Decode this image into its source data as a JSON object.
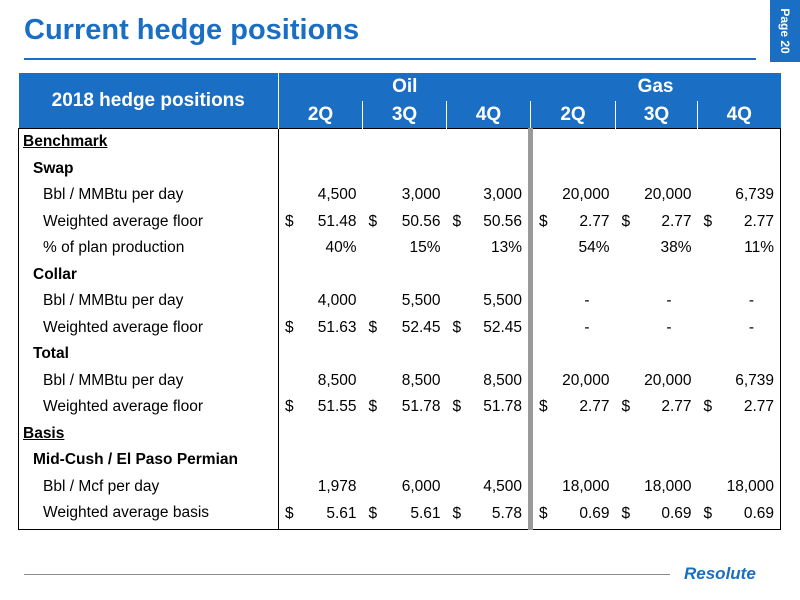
{
  "header": {
    "title": "Current hedge positions",
    "page_label": "Page 20"
  },
  "table": {
    "title": "2018 hedge positions",
    "groups": [
      "Oil",
      "Gas"
    ],
    "quarters": [
      "2Q",
      "3Q",
      "4Q",
      "2Q",
      "3Q",
      "4Q"
    ],
    "rows": [
      {
        "label": "Benchmark",
        "kind": "section"
      },
      {
        "label": "Swap",
        "kind": "subsection"
      },
      {
        "label": "Bbl / MMBtu per day",
        "kind": "item",
        "cells": [
          {
            "d": "",
            "v": "4,500"
          },
          {
            "d": "",
            "v": "3,000"
          },
          {
            "d": "",
            "v": "3,000"
          },
          {
            "d": "",
            "v": "20,000"
          },
          {
            "d": "",
            "v": "20,000"
          },
          {
            "d": "",
            "v": "6,739"
          }
        ]
      },
      {
        "label": "Weighted average floor",
        "kind": "item",
        "cells": [
          {
            "d": "$",
            "v": "51.48"
          },
          {
            "d": "$",
            "v": "50.56"
          },
          {
            "d": "$",
            "v": "50.56"
          },
          {
            "d": "$",
            "v": "2.77"
          },
          {
            "d": "$",
            "v": "2.77"
          },
          {
            "d": "$",
            "v": "2.77"
          }
        ]
      },
      {
        "label": "% of plan production",
        "kind": "item",
        "cells": [
          {
            "d": "",
            "v": "40%"
          },
          {
            "d": "",
            "v": "15%"
          },
          {
            "d": "",
            "v": "13%"
          },
          {
            "d": "",
            "v": "54%"
          },
          {
            "d": "",
            "v": "38%"
          },
          {
            "d": "",
            "v": "11%"
          }
        ]
      },
      {
        "label": "Collar",
        "kind": "subsection"
      },
      {
        "label": "Bbl / MMBtu per day",
        "kind": "item",
        "cells": [
          {
            "d": "",
            "v": "4,000"
          },
          {
            "d": "",
            "v": "5,500"
          },
          {
            "d": "",
            "v": "5,500"
          },
          {
            "d": "",
            "v": "-"
          },
          {
            "d": "",
            "v": "-"
          },
          {
            "d": "",
            "v": "-"
          }
        ]
      },
      {
        "label": "Weighted average floor",
        "kind": "item",
        "cells": [
          {
            "d": "$",
            "v": "51.63"
          },
          {
            "d": "$",
            "v": "52.45"
          },
          {
            "d": "$",
            "v": "52.45"
          },
          {
            "d": "",
            "v": "-"
          },
          {
            "d": "",
            "v": "-"
          },
          {
            "d": "",
            "v": "-"
          }
        ]
      },
      {
        "label": "Total",
        "kind": "subsection"
      },
      {
        "label": "Bbl / MMBtu per day",
        "kind": "item",
        "cells": [
          {
            "d": "",
            "v": "8,500"
          },
          {
            "d": "",
            "v": "8,500"
          },
          {
            "d": "",
            "v": "8,500"
          },
          {
            "d": "",
            "v": "20,000"
          },
          {
            "d": "",
            "v": "20,000"
          },
          {
            "d": "",
            "v": "6,739"
          }
        ]
      },
      {
        "label": "Weighted average floor",
        "kind": "item",
        "cells": [
          {
            "d": "$",
            "v": "51.55"
          },
          {
            "d": "$",
            "v": "51.78"
          },
          {
            "d": "$",
            "v": "51.78"
          },
          {
            "d": "$",
            "v": "2.77"
          },
          {
            "d": "$",
            "v": "2.77"
          },
          {
            "d": "$",
            "v": "2.77"
          }
        ]
      },
      {
        "label": "Basis",
        "kind": "section"
      },
      {
        "label": "Mid-Cush / El Paso Permian",
        "kind": "subsection"
      },
      {
        "label": "Bbl / Mcf per day",
        "kind": "item",
        "cells": [
          {
            "d": "",
            "v": "1,978"
          },
          {
            "d": "",
            "v": "6,000"
          },
          {
            "d": "",
            "v": "4,500"
          },
          {
            "d": "",
            "v": "18,000"
          },
          {
            "d": "",
            "v": "18,000"
          },
          {
            "d": "",
            "v": "18,000"
          }
        ]
      },
      {
        "label": "Weighted average basis",
        "kind": "item",
        "cells": [
          {
            "d": "$",
            "v": "5.61"
          },
          {
            "d": "$",
            "v": "5.61"
          },
          {
            "d": "$",
            "v": "5.78"
          },
          {
            "d": "$",
            "v": "0.69"
          },
          {
            "d": "$",
            "v": "0.69"
          },
          {
            "d": "$",
            "v": "0.69"
          }
        ]
      }
    ]
  },
  "footer": {
    "logo_text": "Resolute"
  },
  "colors": {
    "accent": "#1a6fc4",
    "separator": "#9a9a9a"
  }
}
